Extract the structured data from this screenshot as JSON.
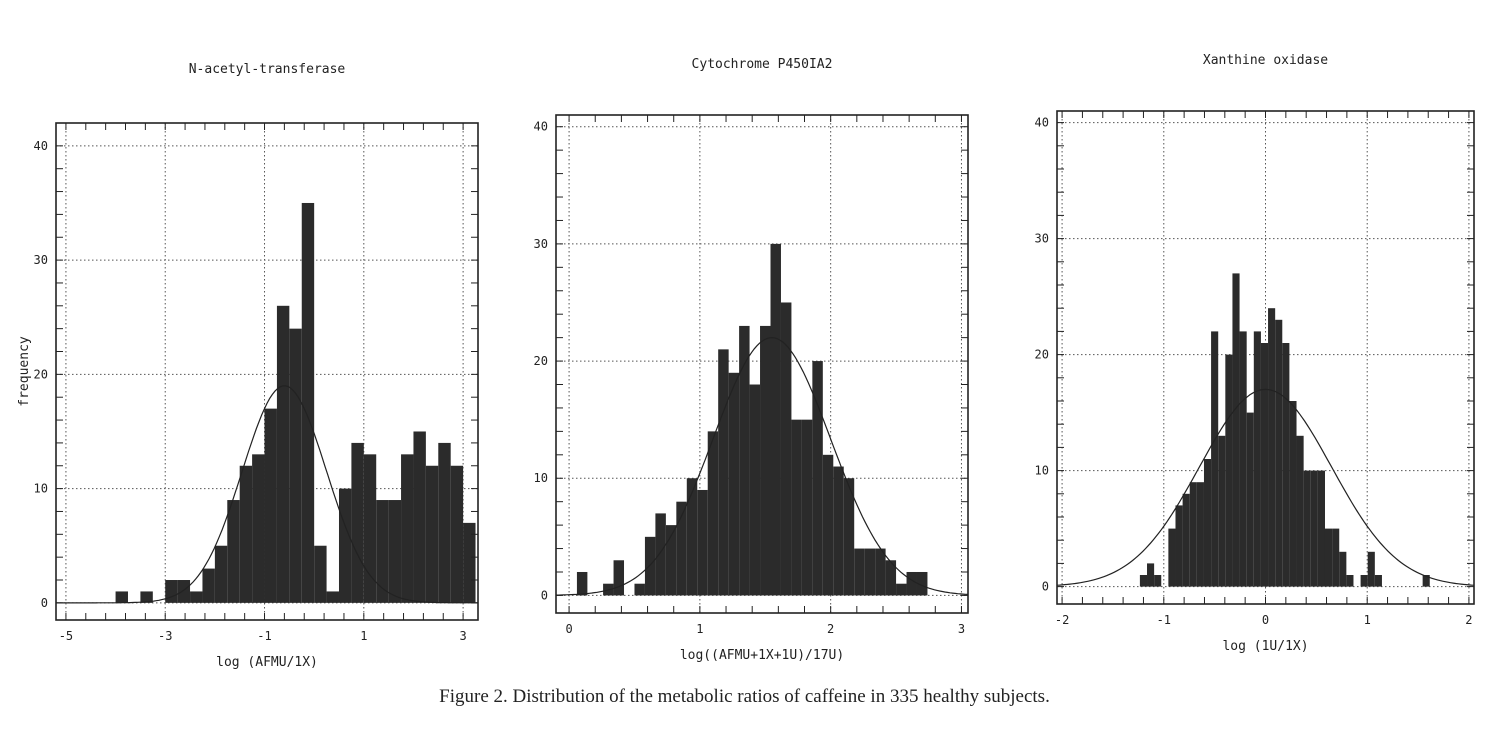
{
  "figure": {
    "caption": "Figure 2.  Distribution of the metabolic ratios of caffeine in 335 healthy subjects."
  },
  "chart_data": [
    {
      "type": "bar",
      "title": "N-acetyl-transferase",
      "xlabel": "log (AFMU/1X)",
      "ylabel": "frequency",
      "xlim": [
        -5.2,
        3.3
      ],
      "ylim": [
        -1.5,
        42
      ],
      "xticks": [
        -5,
        -3,
        -1,
        1,
        3
      ],
      "yticks": [
        0,
        10,
        20,
        30,
        40
      ],
      "grid": true,
      "bin_width": 0.25,
      "bins": [
        {
          "x": -3.875,
          "y": 1
        },
        {
          "x": -3.375,
          "y": 1
        },
        {
          "x": -2.875,
          "y": 2
        },
        {
          "x": -2.625,
          "y": 2
        },
        {
          "x": -2.375,
          "y": 1
        },
        {
          "x": -2.125,
          "y": 3
        },
        {
          "x": -1.875,
          "y": 5
        },
        {
          "x": -1.625,
          "y": 9
        },
        {
          "x": -1.375,
          "y": 12
        },
        {
          "x": -1.125,
          "y": 13
        },
        {
          "x": -0.875,
          "y": 17
        },
        {
          "x": -0.625,
          "y": 26
        },
        {
          "x": -0.375,
          "y": 24
        },
        {
          "x": -0.125,
          "y": 35
        },
        {
          "x": 0.125,
          "y": 5
        },
        {
          "x": 0.375,
          "y": 1
        },
        {
          "x": 0.625,
          "y": 10
        },
        {
          "x": 0.875,
          "y": 14
        },
        {
          "x": 1.125,
          "y": 13
        },
        {
          "x": 1.375,
          "y": 9
        },
        {
          "x": 1.625,
          "y": 9
        },
        {
          "x": 1.875,
          "y": 13
        },
        {
          "x": 2.125,
          "y": 15
        },
        {
          "x": 2.375,
          "y": 12
        },
        {
          "x": 2.625,
          "y": 14
        },
        {
          "x": 2.875,
          "y": 12
        },
        {
          "x": 3.125,
          "y": 7
        }
      ],
      "fit": {
        "mean": -0.6,
        "sd": 0.85,
        "peak": 19
      }
    },
    {
      "type": "bar",
      "title": "Cytochrome P450IA2",
      "xlabel": "log((AFMU+1X+1U)/17U)",
      "xlim": [
        -0.1,
        3.05
      ],
      "ylim": [
        -1.5,
        41
      ],
      "xticks": [
        0,
        1,
        2,
        3
      ],
      "yticks": [
        0,
        10,
        20,
        30,
        40
      ],
      "grid": true,
      "bin_width": 0.08,
      "bins": [
        {
          "x": 0.1,
          "y": 2
        },
        {
          "x": 0.3,
          "y": 1
        },
        {
          "x": 0.38,
          "y": 3
        },
        {
          "x": 0.54,
          "y": 1
        },
        {
          "x": 0.62,
          "y": 5
        },
        {
          "x": 0.7,
          "y": 7
        },
        {
          "x": 0.78,
          "y": 6
        },
        {
          "x": 0.86,
          "y": 8
        },
        {
          "x": 0.94,
          "y": 10
        },
        {
          "x": 1.02,
          "y": 9
        },
        {
          "x": 1.1,
          "y": 14
        },
        {
          "x": 1.18,
          "y": 21
        },
        {
          "x": 1.26,
          "y": 19
        },
        {
          "x": 1.34,
          "y": 23
        },
        {
          "x": 1.42,
          "y": 18
        },
        {
          "x": 1.5,
          "y": 23
        },
        {
          "x": 1.58,
          "y": 30
        },
        {
          "x": 1.66,
          "y": 25
        },
        {
          "x": 1.74,
          "y": 15
        },
        {
          "x": 1.82,
          "y": 15
        },
        {
          "x": 1.9,
          "y": 20
        },
        {
          "x": 1.98,
          "y": 12
        },
        {
          "x": 2.06,
          "y": 11
        },
        {
          "x": 2.14,
          "y": 10
        },
        {
          "x": 2.22,
          "y": 4
        },
        {
          "x": 2.3,
          "y": 4
        },
        {
          "x": 2.38,
          "y": 4
        },
        {
          "x": 2.46,
          "y": 3
        },
        {
          "x": 2.54,
          "y": 1
        },
        {
          "x": 2.62,
          "y": 2
        },
        {
          "x": 2.7,
          "y": 2
        }
      ],
      "fit": {
        "mean": 1.55,
        "sd": 0.45,
        "peak": 22
      }
    },
    {
      "type": "bar",
      "title": "Xanthine oxidase",
      "xlabel": "log (1U/1X)",
      "xlim": [
        -2.05,
        2.05
      ],
      "ylim": [
        -1.5,
        41
      ],
      "xticks": [
        -2,
        -1,
        0,
        1,
        2
      ],
      "yticks": [
        0,
        10,
        20,
        30,
        40
      ],
      "grid": true,
      "bin_width": 0.07,
      "bins": [
        {
          "x": -1.2,
          "y": 1
        },
        {
          "x": -1.13,
          "y": 2
        },
        {
          "x": -1.06,
          "y": 1
        },
        {
          "x": -0.92,
          "y": 5
        },
        {
          "x": -0.85,
          "y": 7
        },
        {
          "x": -0.78,
          "y": 8
        },
        {
          "x": -0.71,
          "y": 9
        },
        {
          "x": -0.64,
          "y": 9
        },
        {
          "x": -0.57,
          "y": 11
        },
        {
          "x": -0.5,
          "y": 22
        },
        {
          "x": -0.43,
          "y": 13
        },
        {
          "x": -0.36,
          "y": 20
        },
        {
          "x": -0.29,
          "y": 27
        },
        {
          "x": -0.22,
          "y": 22
        },
        {
          "x": -0.15,
          "y": 15
        },
        {
          "x": -0.08,
          "y": 22
        },
        {
          "x": -0.01,
          "y": 21
        },
        {
          "x": 0.06,
          "y": 24
        },
        {
          "x": 0.13,
          "y": 23
        },
        {
          "x": 0.2,
          "y": 21
        },
        {
          "x": 0.27,
          "y": 16
        },
        {
          "x": 0.34,
          "y": 13
        },
        {
          "x": 0.41,
          "y": 10
        },
        {
          "x": 0.48,
          "y": 10
        },
        {
          "x": 0.55,
          "y": 10
        },
        {
          "x": 0.62,
          "y": 5
        },
        {
          "x": 0.69,
          "y": 5
        },
        {
          "x": 0.76,
          "y": 3
        },
        {
          "x": 0.83,
          "y": 1
        },
        {
          "x": 0.97,
          "y": 1
        },
        {
          "x": 1.04,
          "y": 3
        },
        {
          "x": 1.11,
          "y": 1
        },
        {
          "x": 1.58,
          "y": 1
        }
      ],
      "fit": {
        "mean": 0.0,
        "sd": 0.65,
        "peak": 17
      }
    }
  ]
}
